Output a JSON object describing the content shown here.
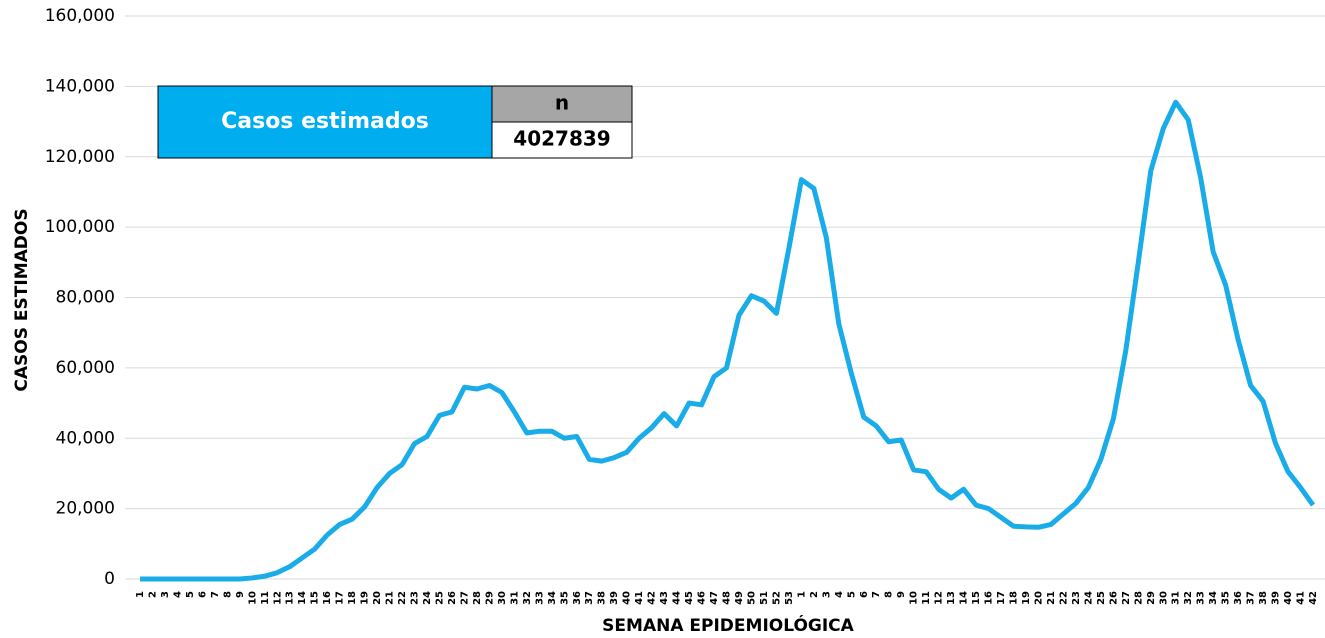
{
  "chart_data": {
    "type": "line",
    "x_label": "SEMANA EPIDEMIOLÓGICA",
    "y_label": "CASOS ESTIMADOS",
    "categories": [
      "1",
      "2",
      "3",
      "4",
      "5",
      "6",
      "7",
      "8",
      "9",
      "10",
      "11",
      "12",
      "13",
      "14",
      "15",
      "16",
      "17",
      "18",
      "19",
      "20",
      "21",
      "22",
      "23",
      "24",
      "25",
      "26",
      "27",
      "28",
      "29",
      "30",
      "31",
      "32",
      "33",
      "34",
      "35",
      "36",
      "37",
      "38",
      "39",
      "40",
      "41",
      "42",
      "43",
      "44",
      "45",
      "46",
      "47",
      "48",
      "49",
      "50",
      "51",
      "52",
      "53",
      "1",
      "2",
      "3",
      "4",
      "5",
      "6",
      "7",
      "8",
      "9",
      "10",
      "11",
      "12",
      "13",
      "14",
      "15",
      "16",
      "17",
      "18",
      "19",
      "20",
      "21",
      "22",
      "23",
      "24",
      "25",
      "26",
      "27",
      "28",
      "29",
      "30",
      "31",
      "32",
      "33",
      "34",
      "35",
      "36",
      "37",
      "38",
      "39",
      "40",
      "41",
      "42"
    ],
    "series": [
      {
        "name": "Casos estimados",
        "color": "#19ace8",
        "values": [
          0,
          0,
          0,
          0,
          0,
          0,
          0,
          0,
          0,
          300,
          800,
          1800,
          3500,
          6000,
          8500,
          12500,
          15500,
          17000,
          20500,
          26000,
          30000,
          32500,
          38500,
          40500,
          46500,
          47500,
          54500,
          54000,
          55000,
          53000,
          47500,
          41500,
          42000,
          42000,
          40000,
          40500,
          34000,
          33500,
          34500,
          36000,
          40000,
          43000,
          47000,
          43500,
          50000,
          49500,
          57500,
          60000,
          75000,
          80500,
          79000,
          75500,
          94000,
          113500,
          111000,
          97000,
          72500,
          58500,
          46000,
          43500,
          39000,
          39500,
          31000,
          30500,
          25500,
          23000,
          25500,
          21000,
          20000,
          17500,
          15000,
          14800,
          14700,
          15500,
          18500,
          21500,
          26000,
          34000,
          45500,
          65000,
          90000,
          116000,
          128000,
          135500,
          130500,
          114000,
          93000,
          83500,
          68000,
          55000,
          50500,
          38500,
          30500,
          26000,
          21000
        ]
      }
    ],
    "ylim": [
      0,
      160000
    ],
    "yticks": [
      {
        "value": 0,
        "label": "0"
      },
      {
        "value": 20000,
        "label": "20,000"
      },
      {
        "value": 40000,
        "label": "40,000"
      },
      {
        "value": 60000,
        "label": "60,000"
      },
      {
        "value": 80000,
        "label": "80,000"
      },
      {
        "value": 100000,
        "label": "100,000"
      },
      {
        "value": 120000,
        "label": "120,000"
      },
      {
        "value": 140000,
        "label": "140,000"
      },
      {
        "value": 160000,
        "label": "160,000"
      }
    ],
    "grid": true,
    "summary_table": {
      "label": "Casos estimados",
      "header": "n",
      "value": 4027839
    }
  }
}
